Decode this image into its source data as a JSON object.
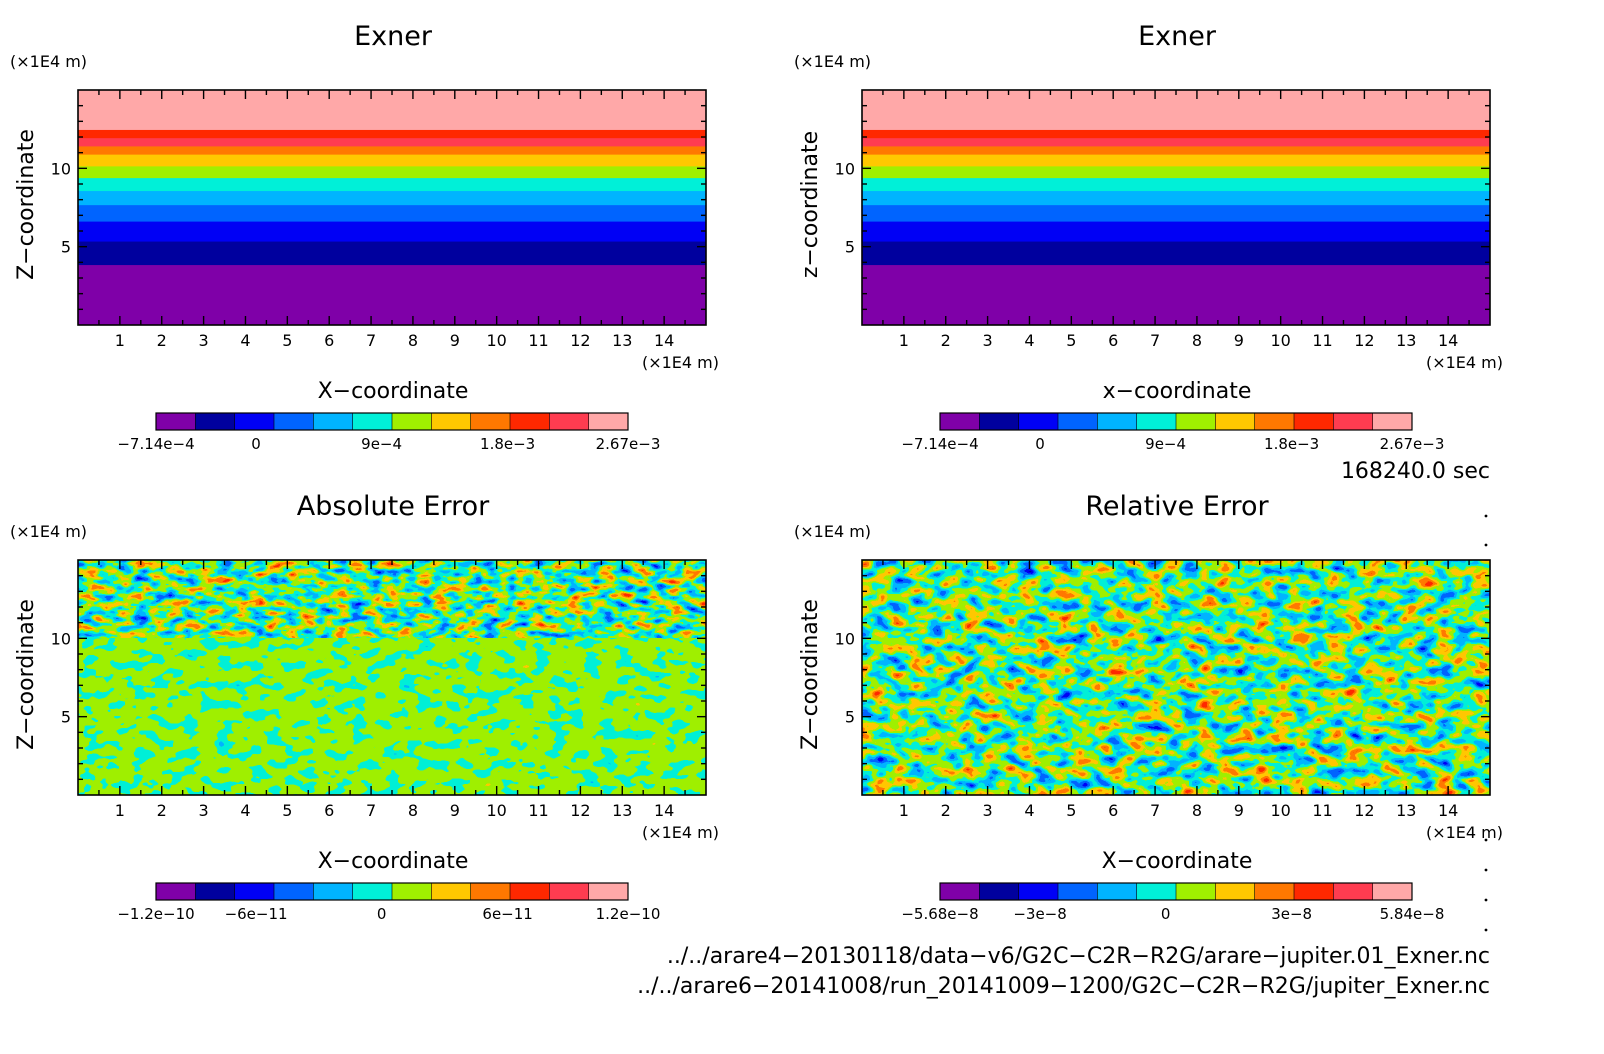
{
  "chart_data": [
    {
      "type": "heatmap",
      "title": "Exner",
      "unit_top": "(×1E4 m)",
      "unit_bottom": "(×1E4 m)",
      "xlabel": "X−coordinate",
      "ylabel": "Z−coordinate",
      "xlim": [
        0,
        15
      ],
      "ylim": [
        0,
        15
      ],
      "xticks": [
        "1",
        "2",
        "3",
        "4",
        "5",
        "6",
        "7",
        "8",
        "9",
        "10",
        "11",
        "12",
        "13",
        "14"
      ],
      "yticks": [
        "5",
        "10"
      ],
      "pattern": "layers",
      "colorbar_labels": [
        "−7.14e−4",
        "0",
        "9e−4",
        "1.8e−3",
        "2.67e−3"
      ]
    },
    {
      "type": "heatmap",
      "title": "Exner",
      "unit_top": "(×1E4 m)",
      "unit_bottom": "(×1E4 m)",
      "xlabel": "x−coordinate",
      "ylabel": "z−coordinate",
      "xlim": [
        0,
        15
      ],
      "ylim": [
        0,
        15
      ],
      "xticks": [
        "1",
        "2",
        "3",
        "4",
        "5",
        "6",
        "7",
        "8",
        "9",
        "10",
        "11",
        "12",
        "13",
        "14"
      ],
      "yticks": [
        "5",
        "10"
      ],
      "pattern": "layers",
      "colorbar_labels": [
        "−7.14e−4",
        "0",
        "9e−4",
        "1.8e−3",
        "2.67e−3"
      ]
    },
    {
      "type": "heatmap",
      "title": "Absolute Error",
      "unit_top": "(×1E4 m)",
      "unit_bottom": "(×1E4 m)",
      "xlabel": "X−coordinate",
      "ylabel": "Z−coordinate",
      "xlim": [
        0,
        15
      ],
      "ylim": [
        0,
        15
      ],
      "xticks": [
        "1",
        "2",
        "3",
        "4",
        "5",
        "6",
        "7",
        "8",
        "9",
        "10",
        "11",
        "12",
        "13",
        "14"
      ],
      "yticks": [
        "5",
        "10"
      ],
      "pattern": "noise-split",
      "colorbar_labels": [
        "−1.2e−10",
        "−6e−11",
        "0",
        "6e−11",
        "1.2e−10"
      ]
    },
    {
      "type": "heatmap",
      "title": "Relative Error",
      "unit_top": "(×1E4 m)",
      "unit_bottom": "(×1E4 m)",
      "xlabel": "X−coordinate",
      "ylabel": "Z−coordinate",
      "xlim": [
        0,
        15
      ],
      "ylim": [
        0,
        15
      ],
      "xticks": [
        "1",
        "2",
        "3",
        "4",
        "5",
        "6",
        "7",
        "8",
        "9",
        "10",
        "11",
        "12",
        "13",
        "14"
      ],
      "yticks": [
        "5",
        "10"
      ],
      "pattern": "noise-full",
      "colorbar_labels": [
        "−5.68e−8",
        "−3e−8",
        "0",
        "3e−8",
        "5.84e−8"
      ]
    }
  ],
  "colormap": [
    "#7f00a8",
    "#00009e",
    "#0000f5",
    "#0064ff",
    "#00b4ff",
    "#00f0d8",
    "#a0f000",
    "#ffc800",
    "#ff7800",
    "#ff2800",
    "#ff3c50",
    "#ffa8a8"
  ],
  "time_label": "168240.0 sec",
  "file_lines": [
    "../../arare4−20130118/data−v6/G2C−C2R−R2G/arare−jupiter.01_Exner.nc",
    "../../arare6−20141008/run_20141009−1200/G2C−C2R−R2G/jupiter_Exner.nc"
  ]
}
